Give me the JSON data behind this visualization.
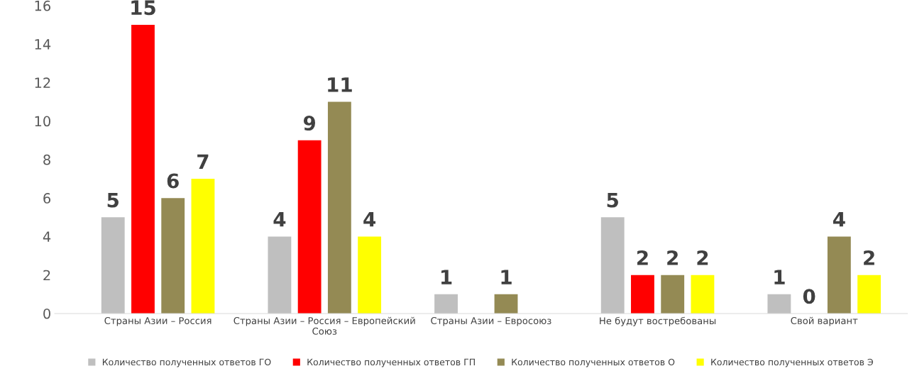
{
  "chart_data": {
    "type": "bar",
    "categories": [
      "Страны Азии – Россия",
      "Страны Азии – Россия – Европейский Союз",
      "Страны Азии – Евросоюз",
      "Не будут востребованы",
      "Свой вариант"
    ],
    "series": [
      {
        "name": "Количество полученных ответов ГО",
        "color": "#bfbfbf",
        "values": [
          5,
          4,
          1,
          5,
          1
        ]
      },
      {
        "name": "Количество полученных ответов ГП",
        "color": "#ff0000",
        "values": [
          15,
          9,
          null,
          2,
          0
        ]
      },
      {
        "name": "Количество полученных ответов О",
        "color": "#948a54",
        "values": [
          6,
          11,
          1,
          2,
          4
        ]
      },
      {
        "name": "Количество полученных ответов Э",
        "color": "#ffff00",
        "values": [
          7,
          4,
          null,
          2,
          2
        ]
      }
    ],
    "ylim": [
      0,
      16
    ],
    "yticks": [
      0,
      2,
      4,
      6,
      8,
      10,
      12,
      14,
      16
    ],
    "data_labels": true,
    "grid": false,
    "legend": "bottom"
  }
}
